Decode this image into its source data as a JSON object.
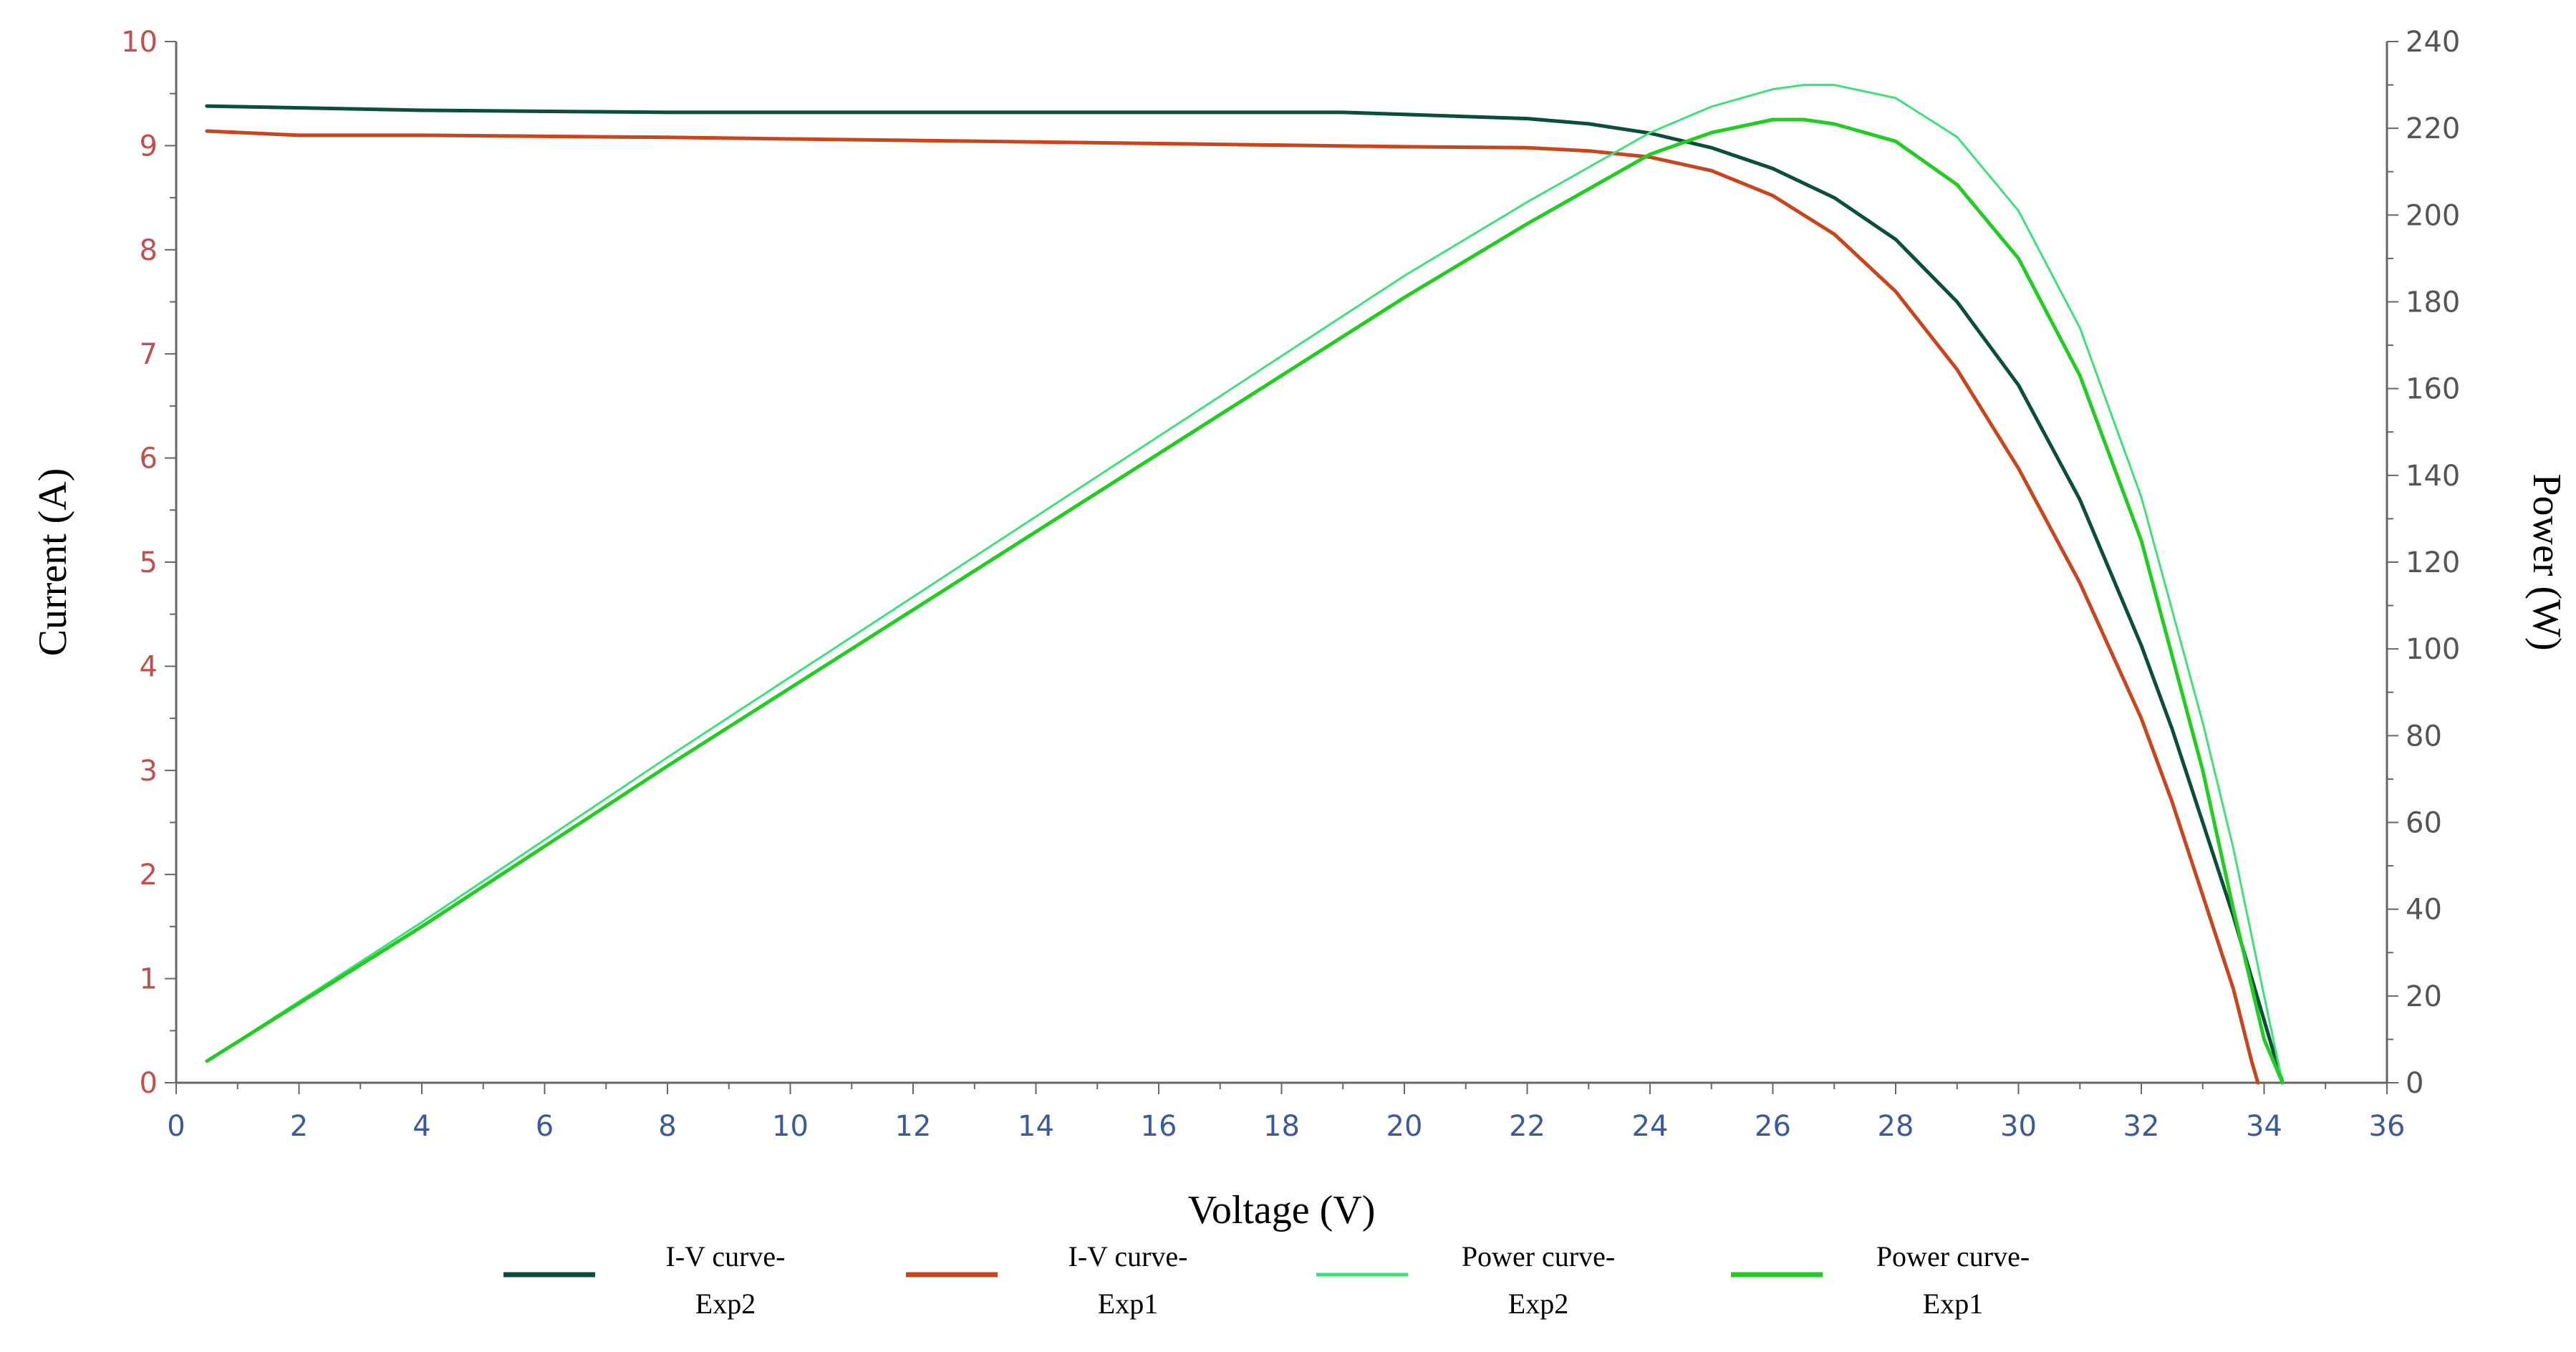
{
  "chart_data": {
    "type": "line",
    "xlabel": "Voltage (V)",
    "ylabel_left": "Current (A)",
    "ylabel_right": "Power (W)",
    "xlim": [
      0,
      36
    ],
    "ylim_left": [
      0,
      10
    ],
    "ylim_right": [
      0,
      240
    ],
    "x_ticks": [
      0,
      2,
      4,
      6,
      8,
      10,
      12,
      14,
      16,
      18,
      20,
      22,
      24,
      26,
      28,
      30,
      32,
      34,
      36
    ],
    "y_left_ticks": [
      0,
      1,
      2,
      3,
      4,
      5,
      6,
      7,
      8,
      9,
      10
    ],
    "y_right_ticks": [
      0,
      20,
      40,
      60,
      80,
      100,
      120,
      140,
      160,
      180,
      200,
      220,
      240
    ],
    "grid": false,
    "legend_position": "bottom",
    "series": [
      {
        "name": "I-V curve-Exp2",
        "legend_lines": [
          "I-V curve-",
          "Exp2"
        ],
        "axis": "left",
        "color": "#0b4f3a",
        "stroke_width": 5,
        "x": [
          0.5,
          4,
          8,
          12,
          16,
          19,
          20,
          22,
          23,
          24,
          25,
          26,
          27,
          28,
          29,
          30,
          31,
          32,
          32.5,
          33,
          33.5,
          34,
          34.2,
          34.3
        ],
        "y": [
          9.38,
          9.34,
          9.32,
          9.32,
          9.32,
          9.32,
          9.3,
          9.26,
          9.21,
          9.12,
          8.98,
          8.78,
          8.5,
          8.1,
          7.5,
          6.7,
          5.6,
          4.2,
          3.4,
          2.5,
          1.6,
          0.6,
          0.2,
          0
        ]
      },
      {
        "name": "I-V curve-Exp1",
        "legend_lines": [
          "I-V curve-",
          "Exp1"
        ],
        "axis": "left",
        "color": "#c8461e",
        "stroke_width": 5,
        "x": [
          0.5,
          2,
          4,
          8,
          12,
          16,
          20,
          22,
          23,
          24,
          25,
          26,
          27,
          28,
          29,
          30,
          31,
          32,
          32.5,
          33,
          33.5,
          33.8,
          33.9
        ],
        "y": [
          9.14,
          9.1,
          9.1,
          9.08,
          9.05,
          9.02,
          8.99,
          8.98,
          8.95,
          8.89,
          8.76,
          8.52,
          8.15,
          7.6,
          6.85,
          5.9,
          4.8,
          3.5,
          2.7,
          1.8,
          0.9,
          0.2,
          0
        ]
      },
      {
        "name": "Power curve-Exp2",
        "legend_lines": [
          "Power curve-",
          "Exp2"
        ],
        "axis": "right",
        "color": "#3fe07a",
        "stroke_width": 3,
        "x": [
          0.5,
          4,
          8,
          12,
          16,
          20,
          22,
          24,
          25,
          26,
          26.5,
          27,
          28,
          29,
          30,
          31,
          32,
          33,
          33.5,
          34,
          34.3
        ],
        "y": [
          5,
          37,
          75,
          112,
          149,
          186,
          203,
          219,
          225,
          229,
          230,
          230,
          227,
          218,
          201,
          174,
          135,
          83,
          54,
          20,
          0
        ]
      },
      {
        "name": "Power curve-Exp1",
        "legend_lines": [
          "Power curve-",
          "Exp1"
        ],
        "axis": "right",
        "color": "#22cc22",
        "stroke_width": 5,
        "x": [
          0.5,
          4,
          8,
          12,
          16,
          20,
          22,
          24,
          25,
          26,
          26.5,
          27,
          28,
          29,
          30,
          31,
          32,
          33,
          33.5,
          34,
          34.3
        ],
        "y": [
          5,
          36,
          73,
          109,
          145,
          181,
          198,
          214,
          219,
          222,
          222,
          221,
          217,
          207,
          190,
          163,
          125,
          72,
          40,
          10,
          0
        ]
      }
    ]
  }
}
